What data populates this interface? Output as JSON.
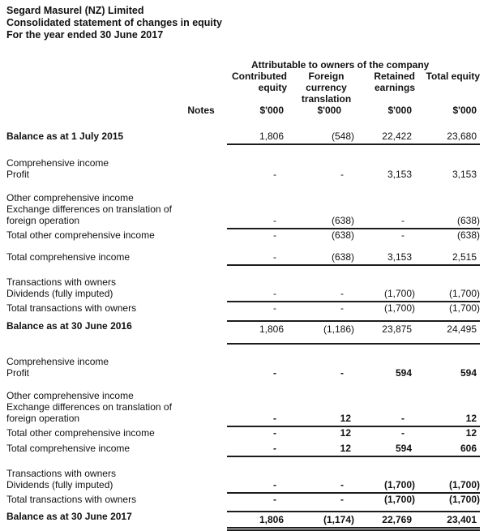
{
  "page": {
    "title_lines": [
      "Segard Masurel (NZ) Limited",
      "Consolidated statement of changes in equity",
      "For the year ended 30 June 2017"
    ]
  },
  "table": {
    "group_header": "Attributable to owners of the company",
    "notes_label": "Notes",
    "columns": [
      {
        "lines": [
          "Contributed",
          "equity"
        ],
        "unit": "$'000"
      },
      {
        "lines": [
          "Foreign",
          "currency",
          "translation"
        ],
        "unit": "$'000"
      },
      {
        "lines": [
          "Retained",
          "earnings"
        ],
        "unit": "$'000"
      },
      {
        "lines": [
          "Total equity"
        ],
        "unit": "$'000"
      }
    ],
    "rows": [
      {
        "type": "spacer",
        "h": 18
      },
      {
        "type": "row",
        "label": "Balance as at 1 July 2015",
        "label_bold": true,
        "values": [
          "1,806",
          "(548)",
          "22,422",
          "23,680"
        ],
        "rule": "below"
      },
      {
        "type": "spacer",
        "h": 15
      },
      {
        "type": "row",
        "label": "Comprehensive income"
      },
      {
        "type": "row",
        "label": "Profit",
        "values": [
          "-",
          "-",
          "3,153",
          "3,153"
        ]
      },
      {
        "type": "spacer",
        "h": 15
      },
      {
        "type": "row",
        "label": "Other comprehensive income"
      },
      {
        "type": "row",
        "label": "Exchange differences on translation of"
      },
      {
        "type": "row",
        "label": "foreign operation",
        "values": [
          "-",
          "(638)",
          "-",
          "(638)"
        ],
        "rule": "below"
      },
      {
        "type": "row",
        "label": "Total other comprehensive income",
        "values": [
          "-",
          "(638)",
          "-",
          "(638)"
        ]
      },
      {
        "type": "spacer",
        "h": 13
      },
      {
        "type": "row",
        "label": "Total comprehensive income",
        "values": [
          "-",
          "(638)",
          "3,153",
          "2,515"
        ],
        "rule": "below"
      },
      {
        "type": "spacer",
        "h": 13
      },
      {
        "type": "row",
        "label": "Transactions with owners"
      },
      {
        "type": "row",
        "label": "Dividends (fully imputed)",
        "values": [
          "-",
          "-",
          "(1,700)",
          "(1,700)"
        ],
        "rule": "below"
      },
      {
        "type": "row",
        "label": "Total transactions with owners",
        "values": [
          "-",
          "-",
          "(1,700)",
          "(1,700)"
        ]
      },
      {
        "type": "spacer",
        "h": 8
      },
      {
        "type": "row",
        "label": "Balance as at 30 June 2016",
        "label_bold": true,
        "values": [
          "1,806",
          "(1,186)",
          "23,875",
          "24,495"
        ],
        "rule": "above-below-gap"
      },
      {
        "type": "spacer",
        "h": 14
      },
      {
        "type": "row",
        "label": "Comprehensive income"
      },
      {
        "type": "row",
        "label": "Profit",
        "values": [
          "-",
          "-",
          "594",
          "594"
        ],
        "values_bold": true
      },
      {
        "type": "spacer",
        "h": 14
      },
      {
        "type": "row",
        "label": "Other comprehensive income"
      },
      {
        "type": "row",
        "label": "Exchange differences on translation of"
      },
      {
        "type": "row",
        "label": "foreign operation",
        "values": [
          "-",
          "12",
          "-",
          "12"
        ],
        "values_bold": true,
        "rule": "below"
      },
      {
        "type": "row",
        "label": "Total other comprehensive income",
        "values": [
          "-",
          "12",
          "-",
          "12"
        ],
        "values_bold": true
      },
      {
        "type": "spacer",
        "h": 5
      },
      {
        "type": "row",
        "label": "Total comprehensive income",
        "values": [
          "-",
          "12",
          "594",
          "606"
        ],
        "values_bold": true,
        "rule": "below"
      },
      {
        "type": "spacer",
        "h": 13
      },
      {
        "type": "row",
        "label": "Transactions with owners"
      },
      {
        "type": "row",
        "label": "Dividends (fully imputed)",
        "values": [
          "-",
          "-",
          "(1,700)",
          "(1,700)"
        ],
        "values_bold": true,
        "rule": "below"
      },
      {
        "type": "row",
        "label": "Total transactions with owners",
        "values": [
          "-",
          "-",
          "(1,700)",
          "(1,700)"
        ],
        "values_bold": true
      },
      {
        "type": "spacer",
        "h": 7
      },
      {
        "type": "row",
        "label": "Balance as at 30 June 2017",
        "label_bold": true,
        "values": [
          "1,806",
          "(1,174)",
          "22,769",
          "23,401"
        ],
        "values_bold": true,
        "rule": "above-double-below"
      }
    ]
  }
}
